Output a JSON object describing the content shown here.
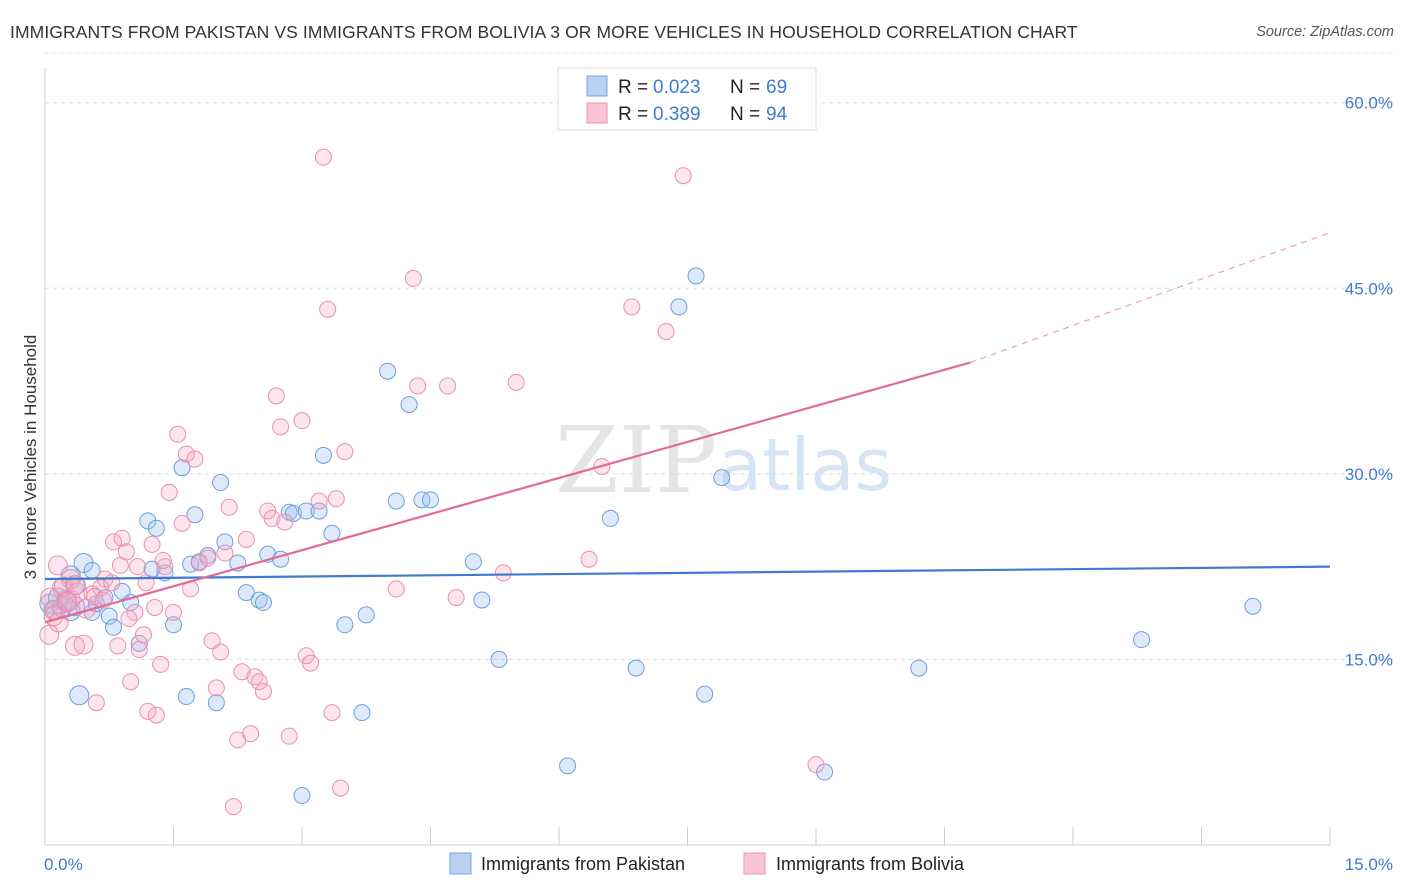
{
  "title": "IMMIGRANTS FROM PAKISTAN VS IMMIGRANTS FROM BOLIVIA 3 OR MORE VEHICLES IN HOUSEHOLD CORRELATION CHART",
  "source": "Source: ZipAtlas.com",
  "watermark": {
    "zip": "ZIP",
    "atlas": "atlas"
  },
  "legend": {
    "rows": [
      {
        "r_label": "R =",
        "r_value": "0.023",
        "n_label": "N =",
        "n_value": "69",
        "color": "#9fc1ee"
      },
      {
        "r_label": "R =",
        "r_value": "0.389",
        "n_label": "N =",
        "n_value": "94",
        "color": "#f5a9c3"
      }
    ]
  },
  "bottom_legend": [
    {
      "label": "Immigrants from Pakistan",
      "color": "#9fc1ee"
    },
    {
      "label": "Immigrants from Bolivia",
      "color": "#f5a9c3"
    }
  ],
  "chart_data": {
    "type": "scatter",
    "ylabel": "3 or more Vehicles in Household",
    "xlabel": "",
    "xlim": [
      0,
      15
    ],
    "ylim": [
      0,
      60
    ],
    "x_tick_labels": [
      "0.0%",
      "15.0%"
    ],
    "y_tick_labels": [
      "15.0%",
      "30.0%",
      "45.0%",
      "60.0%"
    ],
    "y_ticks": [
      15,
      30,
      45,
      60
    ],
    "grid": true,
    "legend_position": "top-center",
    "series": [
      {
        "name": "Immigrants from Pakistan",
        "color": "#3f7bd0",
        "trend": {
          "x": [
            0,
            15
          ],
          "y": [
            21.5,
            22.5
          ],
          "dashed_beyond": null
        },
        "points": [
          [
            0.05,
            19.5
          ],
          [
            0.1,
            19.0
          ],
          [
            0.15,
            20.0
          ],
          [
            0.2,
            19.2
          ],
          [
            0.25,
            19.8
          ],
          [
            0.3,
            21.8
          ],
          [
            0.35,
            21.0
          ],
          [
            0.45,
            22.8
          ],
          [
            0.55,
            18.8
          ],
          [
            0.6,
            19.5
          ],
          [
            0.7,
            20.0
          ],
          [
            0.75,
            18.5
          ],
          [
            0.8,
            17.6
          ],
          [
            0.9,
            20.5
          ],
          [
            1.0,
            19.6
          ],
          [
            1.1,
            16.3
          ],
          [
            1.2,
            26.2
          ],
          [
            1.25,
            22.3
          ],
          [
            1.3,
            25.6
          ],
          [
            1.4,
            22.0
          ],
          [
            1.5,
            17.8
          ],
          [
            1.6,
            30.5
          ],
          [
            1.65,
            12.0
          ],
          [
            1.7,
            22.7
          ],
          [
            1.75,
            26.7
          ],
          [
            1.8,
            22.9
          ],
          [
            1.9,
            23.4
          ],
          [
            2.0,
            11.5
          ],
          [
            2.05,
            29.3
          ],
          [
            2.1,
            24.5
          ],
          [
            2.25,
            22.8
          ],
          [
            2.35,
            20.4
          ],
          [
            2.5,
            19.8
          ],
          [
            2.55,
            19.6
          ],
          [
            2.6,
            23.5
          ],
          [
            2.75,
            23.1
          ],
          [
            2.85,
            26.9
          ],
          [
            2.9,
            26.8
          ],
          [
            3.0,
            4.0
          ],
          [
            3.05,
            27.0
          ],
          [
            3.2,
            27.0
          ],
          [
            3.25,
            31.5
          ],
          [
            3.35,
            25.2
          ],
          [
            3.5,
            17.8
          ],
          [
            3.7,
            10.7
          ],
          [
            3.75,
            18.6
          ],
          [
            4.0,
            38.3
          ],
          [
            4.1,
            27.8
          ],
          [
            4.25,
            35.6
          ],
          [
            4.4,
            27.9
          ],
          [
            4.5,
            27.9
          ],
          [
            5.0,
            22.9
          ],
          [
            5.1,
            19.8
          ],
          [
            5.3,
            15.0
          ],
          [
            6.1,
            6.4
          ],
          [
            6.6,
            26.4
          ],
          [
            6.9,
            14.3
          ],
          [
            7.4,
            43.5
          ],
          [
            7.6,
            46.0
          ],
          [
            7.7,
            12.2
          ],
          [
            7.9,
            29.7
          ],
          [
            9.1,
            5.9
          ],
          [
            10.2,
            14.3
          ],
          [
            12.8,
            16.6
          ],
          [
            14.1,
            19.3
          ],
          [
            0.4,
            12.1
          ],
          [
            0.3,
            18.9
          ],
          [
            0.55,
            22.2
          ],
          [
            0.35,
            19.3
          ]
        ]
      },
      {
        "name": "Immigrants from Bolivia",
        "color": "#e26b94",
        "trend": {
          "x": [
            0,
            10.8
          ],
          "y": [
            18.0,
            39.0
          ],
          "dashed_to": [
            15,
            49.5
          ]
        },
        "points": [
          [
            0.05,
            17.0
          ],
          [
            0.1,
            18.5
          ],
          [
            0.15,
            22.6
          ],
          [
            0.2,
            20.8
          ],
          [
            0.25,
            19.6
          ],
          [
            0.3,
            21.5
          ],
          [
            0.35,
            16.1
          ],
          [
            0.45,
            16.2
          ],
          [
            0.55,
            20.3
          ],
          [
            0.6,
            11.5
          ],
          [
            0.65,
            20.8
          ],
          [
            0.7,
            21.5
          ],
          [
            0.8,
            24.5
          ],
          [
            0.85,
            16.1
          ],
          [
            0.9,
            24.8
          ],
          [
            0.95,
            23.7
          ],
          [
            1.0,
            13.2
          ],
          [
            1.05,
            18.8
          ],
          [
            1.1,
            15.8
          ],
          [
            1.15,
            17.0
          ],
          [
            1.2,
            10.8
          ],
          [
            1.25,
            24.3
          ],
          [
            1.3,
            10.5
          ],
          [
            1.35,
            14.6
          ],
          [
            1.4,
            22.5
          ],
          [
            1.45,
            28.5
          ],
          [
            1.5,
            18.8
          ],
          [
            1.55,
            33.2
          ],
          [
            1.6,
            26.0
          ],
          [
            1.65,
            31.6
          ],
          [
            1.7,
            20.7
          ],
          [
            1.75,
            31.2
          ],
          [
            1.8,
            22.8
          ],
          [
            1.9,
            23.2
          ],
          [
            1.95,
            16.5
          ],
          [
            2.0,
            12.7
          ],
          [
            2.05,
            15.6
          ],
          [
            2.1,
            23.6
          ],
          [
            2.15,
            27.3
          ],
          [
            2.2,
            3.1
          ],
          [
            2.25,
            8.5
          ],
          [
            2.3,
            14.0
          ],
          [
            2.35,
            24.7
          ],
          [
            2.4,
            9.0
          ],
          [
            2.45,
            13.6
          ],
          [
            2.5,
            13.2
          ],
          [
            2.55,
            12.4
          ],
          [
            2.6,
            27.0
          ],
          [
            2.65,
            26.4
          ],
          [
            2.7,
            36.3
          ],
          [
            2.75,
            33.8
          ],
          [
            2.8,
            26.1
          ],
          [
            2.85,
            8.8
          ],
          [
            3.0,
            34.3
          ],
          [
            3.05,
            15.3
          ],
          [
            3.1,
            14.7
          ],
          [
            3.2,
            27.8
          ],
          [
            3.25,
            55.6
          ],
          [
            3.3,
            43.3
          ],
          [
            3.35,
            10.7
          ],
          [
            3.4,
            28.0
          ],
          [
            3.45,
            4.6
          ],
          [
            3.5,
            31.8
          ],
          [
            4.1,
            20.7
          ],
          [
            4.3,
            45.8
          ],
          [
            4.35,
            37.1
          ],
          [
            4.7,
            37.1
          ],
          [
            4.8,
            20.0
          ],
          [
            5.35,
            22.0
          ],
          [
            5.5,
            37.4
          ],
          [
            6.35,
            23.1
          ],
          [
            6.5,
            30.6
          ],
          [
            6.85,
            43.5
          ],
          [
            7.25,
            41.5
          ],
          [
            7.45,
            54.1
          ],
          [
            9.0,
            6.5
          ],
          [
            0.12,
            19.0
          ],
          [
            0.22,
            20.9
          ],
          [
            0.3,
            19.8
          ],
          [
            0.38,
            20.4
          ],
          [
            0.48,
            19.1
          ],
          [
            0.58,
            20.1
          ],
          [
            0.68,
            19.8
          ],
          [
            0.78,
            21.2
          ],
          [
            0.88,
            22.6
          ],
          [
            0.98,
            18.3
          ],
          [
            1.08,
            22.5
          ],
          [
            1.18,
            21.2
          ],
          [
            1.28,
            19.2
          ],
          [
            1.38,
            23.0
          ],
          [
            0.06,
            20.0
          ],
          [
            0.16,
            18.0
          ],
          [
            0.26,
            19.7
          ],
          [
            0.36,
            21.0
          ]
        ]
      }
    ]
  }
}
